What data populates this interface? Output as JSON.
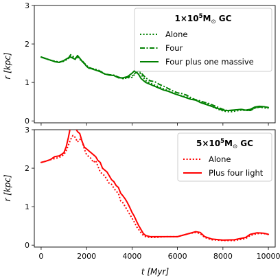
{
  "colors": {
    "green": "#008000",
    "red": "#ff0000"
  },
  "x_axis": {
    "label": "t [Myr]",
    "ticks": [
      0,
      2000,
      4000,
      6000,
      8000,
      10000
    ],
    "range": [
      -300,
      10300
    ]
  },
  "chart_data": [
    {
      "type": "line",
      "title": "",
      "xlabel": "t [Myr]",
      "ylabel": "r [kpc]",
      "xlim": [
        -300,
        10300
      ],
      "ylim": [
        -0.05,
        3.0
      ],
      "yticks": [
        0,
        1,
        2,
        3
      ],
      "legend": {
        "position": "top-right",
        "title": {
          "prefix": "1×10",
          "exponent": "5",
          "suffix": "M",
          "subscript": "⊙",
          "tail": " GC"
        }
      },
      "series": [
        {
          "name": "Alone",
          "color": "#008000",
          "style": "dotted",
          "x": [
            0,
            200,
            400,
            600,
            800,
            1000,
            1200,
            1300,
            1400,
            1500,
            1600,
            1700,
            1800,
            1900,
            2000,
            2100,
            2200,
            2400,
            2600,
            2800,
            3000,
            3200,
            3400,
            3600,
            3800,
            4000,
            4100,
            4200,
            4300,
            4400,
            4600,
            4800,
            5000,
            5200,
            5400,
            5600,
            5800,
            6000,
            6200,
            6400,
            6600,
            6800,
            7000,
            7200,
            7400,
            7600,
            7800,
            8000,
            8200,
            8400,
            8600,
            8800,
            9000,
            9200,
            9400,
            9600,
            9800,
            10000
          ],
          "y": [
            1.66,
            1.62,
            1.58,
            1.55,
            1.53,
            1.55,
            1.62,
            1.7,
            1.66,
            1.62,
            1.66,
            1.6,
            1.55,
            1.5,
            1.43,
            1.38,
            1.37,
            1.34,
            1.3,
            1.22,
            1.2,
            1.19,
            1.14,
            1.1,
            1.12,
            1.13,
            1.2,
            1.27,
            1.3,
            1.2,
            1.05,
            0.98,
            0.93,
            0.88,
            0.83,
            0.78,
            0.73,
            0.68,
            0.65,
            0.62,
            0.58,
            0.55,
            0.5,
            0.47,
            0.43,
            0.35,
            0.3,
            0.26,
            0.24,
            0.24,
            0.26,
            0.28,
            0.27,
            0.27,
            0.34,
            0.36,
            0.34,
            0.32
          ]
        },
        {
          "name": "Four",
          "color": "#008000",
          "style": "dashdot",
          "x": [
            0,
            200,
            400,
            600,
            800,
            1000,
            1200,
            1300,
            1400,
            1500,
            1600,
            1700,
            1800,
            1900,
            2000,
            2100,
            2200,
            2400,
            2600,
            2800,
            3000,
            3200,
            3400,
            3600,
            3800,
            4000,
            4100,
            4200,
            4300,
            4400,
            4600,
            4800,
            5000,
            5200,
            5400,
            5600,
            5800,
            6000,
            6200,
            6400,
            6600,
            6800,
            7000,
            7200,
            7400,
            7600,
            7800,
            8000,
            8200,
            8400,
            8600,
            8800,
            9000,
            9200,
            9400,
            9600,
            9800,
            10000
          ],
          "y": [
            1.66,
            1.62,
            1.58,
            1.55,
            1.53,
            1.56,
            1.63,
            1.72,
            1.68,
            1.63,
            1.67,
            1.62,
            1.57,
            1.5,
            1.44,
            1.39,
            1.37,
            1.33,
            1.29,
            1.22,
            1.2,
            1.18,
            1.14,
            1.1,
            1.13,
            1.17,
            1.22,
            1.28,
            1.3,
            1.25,
            1.12,
            1.04,
            1.02,
            0.95,
            0.9,
            0.84,
            0.78,
            0.73,
            0.71,
            0.67,
            0.6,
            0.55,
            0.52,
            0.48,
            0.45,
            0.4,
            0.35,
            0.3,
            0.27,
            0.27,
            0.29,
            0.3,
            0.28,
            0.27,
            0.33,
            0.36,
            0.37,
            0.35
          ]
        },
        {
          "name": "Four plus one massive",
          "color": "#008000",
          "style": "solid",
          "x": [
            0,
            200,
            400,
            600,
            800,
            1000,
            1200,
            1300,
            1400,
            1500,
            1600,
            1700,
            1800,
            1900,
            2000,
            2100,
            2200,
            2400,
            2600,
            2800,
            3000,
            3200,
            3400,
            3600,
            3800,
            4000,
            4100,
            4200,
            4300,
            4400,
            4600,
            4800,
            5000,
            5200,
            5400,
            5600,
            5800,
            6000,
            6200,
            6400,
            6600,
            6800,
            7000,
            7200,
            7400,
            7600,
            7800,
            8000,
            8200,
            8400,
            8600,
            8800,
            9000,
            9200,
            9400,
            9600,
            9800,
            10000
          ],
          "y": [
            1.66,
            1.62,
            1.58,
            1.54,
            1.52,
            1.57,
            1.64,
            1.66,
            1.63,
            1.6,
            1.7,
            1.63,
            1.55,
            1.49,
            1.42,
            1.37,
            1.36,
            1.32,
            1.28,
            1.22,
            1.19,
            1.18,
            1.12,
            1.12,
            1.15,
            1.24,
            1.3,
            1.27,
            1.2,
            1.1,
            1.0,
            0.95,
            0.9,
            0.85,
            0.8,
            0.77,
            0.72,
            0.68,
            0.64,
            0.6,
            0.56,
            0.54,
            0.48,
            0.44,
            0.4,
            0.36,
            0.32,
            0.28,
            0.27,
            0.28,
            0.29,
            0.3,
            0.28,
            0.3,
            0.36,
            0.38,
            0.37,
            0.35
          ]
        }
      ]
    },
    {
      "type": "line",
      "title": "",
      "xlabel": "t [Myr]",
      "ylabel": "r [kpc]",
      "xlim": [
        -300,
        10300
      ],
      "ylim": [
        -0.05,
        3.0
      ],
      "yticks": [
        0,
        1,
        2,
        3
      ],
      "legend": {
        "position": "top-right",
        "title": {
          "prefix": "5×10",
          "exponent": "5",
          "suffix": "M",
          "subscript": "⊙",
          "tail": " GC"
        }
      },
      "series": [
        {
          "name": "Alone",
          "color": "#ff0000",
          "style": "dotted",
          "x": [
            0,
            200,
            400,
            600,
            800,
            1000,
            1100,
            1200,
            1300,
            1400,
            1500,
            1600,
            1700,
            1800,
            1900,
            2000,
            2100,
            2200,
            2300,
            2400,
            2500,
            2600,
            2700,
            2800,
            2900,
            3000,
            3100,
            3200,
            3300,
            3400,
            3500,
            3600,
            3700,
            3800,
            3900,
            4000,
            4100,
            4200,
            4300,
            4400,
            4500,
            4600,
            4800,
            5000,
            5500,
            6000,
            6500,
            6800,
            7000,
            7200,
            7500,
            8000,
            8500,
            9000,
            9200,
            9500,
            9800,
            10000
          ],
          "y": [
            2.15,
            2.18,
            2.22,
            2.25,
            2.28,
            2.35,
            2.45,
            2.6,
            2.75,
            2.85,
            2.8,
            2.68,
            2.75,
            2.7,
            2.5,
            2.35,
            2.3,
            2.25,
            2.15,
            2.2,
            2.05,
            1.9,
            1.85,
            1.8,
            1.7,
            1.6,
            1.58,
            1.48,
            1.4,
            1.35,
            1.15,
            1.1,
            1.0,
            0.9,
            0.8,
            0.7,
            0.6,
            0.48,
            0.4,
            0.32,
            0.25,
            0.22,
            0.2,
            0.2,
            0.22,
            0.22,
            0.3,
            0.33,
            0.3,
            0.2,
            0.14,
            0.12,
            0.12,
            0.17,
            0.25,
            0.3,
            0.3,
            0.28
          ]
        },
        {
          "name": "Plus four light",
          "color": "#ff0000",
          "style": "solid",
          "x": [
            0,
            200,
            400,
            600,
            800,
            1000,
            1100,
            1200,
            1300,
            1400,
            1500,
            1600,
            1700,
            1800,
            1900,
            2000,
            2100,
            2200,
            2300,
            2400,
            2500,
            2600,
            2700,
            2800,
            2900,
            3000,
            3100,
            3200,
            3300,
            3400,
            3500,
            3600,
            3700,
            3800,
            3900,
            4000,
            4100,
            4200,
            4300,
            4400,
            4500,
            4600,
            4800,
            5000,
            5500,
            6000,
            6500,
            6800,
            7000,
            7200,
            7500,
            8000,
            8500,
            9000,
            9200,
            9500,
            9800,
            10000
          ],
          "y": [
            2.15,
            2.18,
            2.22,
            2.3,
            2.32,
            2.4,
            2.55,
            2.8,
            3.1,
            3.15,
            3.05,
            2.95,
            2.9,
            2.7,
            2.55,
            2.5,
            2.45,
            2.4,
            2.35,
            2.3,
            2.2,
            2.15,
            2.0,
            1.95,
            1.9,
            1.8,
            1.7,
            1.65,
            1.55,
            1.5,
            1.35,
            1.28,
            1.2,
            1.1,
            0.98,
            0.85,
            0.75,
            0.62,
            0.5,
            0.4,
            0.3,
            0.25,
            0.22,
            0.22,
            0.22,
            0.22,
            0.3,
            0.35,
            0.33,
            0.22,
            0.16,
            0.13,
            0.14,
            0.2,
            0.28,
            0.32,
            0.31,
            0.28
          ]
        }
      ]
    }
  ]
}
